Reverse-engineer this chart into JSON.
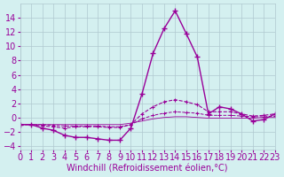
{
  "x": [
    0,
    1,
    2,
    3,
    4,
    5,
    6,
    7,
    8,
    9,
    10,
    11,
    12,
    13,
    14,
    15,
    16,
    17,
    18,
    19,
    20,
    21,
    22,
    23
  ],
  "line1": [
    -1,
    -1,
    -1.5,
    -1.8,
    -2.5,
    -2.8,
    -2.8,
    -3.0,
    -3.2,
    -3.2,
    -1.5,
    3.3,
    9.0,
    12.5,
    15.0,
    11.8,
    8.5,
    0.5,
    1.5,
    1.2,
    0.5,
    -0.5,
    -0.3,
    0.5
  ],
  "line2": [
    -1,
    -1,
    -1.2,
    -1.3,
    -1.5,
    -1.3,
    -1.3,
    -1.3,
    -1.4,
    -1.4,
    -1.0,
    0.5,
    1.5,
    2.2,
    2.5,
    2.2,
    1.8,
    0.8,
    0.8,
    0.8,
    0.5,
    0.2,
    0.3,
    0.5
  ],
  "line3": [
    -1,
    -1,
    -1.0,
    -1.1,
    -1.2,
    -1.2,
    -1.2,
    -1.2,
    -1.3,
    -1.3,
    -1.0,
    -0.2,
    0.3,
    0.6,
    0.8,
    0.7,
    0.6,
    0.3,
    0.3,
    0.3,
    0.2,
    0.1,
    0.1,
    0.2
  ],
  "line4": [
    -1,
    -1,
    -1.0,
    -1.0,
    -1.0,
    -1.0,
    -1.0,
    -1.0,
    -1.0,
    -1.0,
    -0.8,
    -0.5,
    -0.2,
    0.0,
    0.1,
    0.1,
    0.0,
    -0.1,
    -0.1,
    -0.1,
    -0.1,
    -0.1,
    0.0,
    0.0
  ],
  "bg_color": "#d4f0f0",
  "grid_color": "#b0c8d0",
  "line_color": "#990099",
  "xlabel": "Windchill (Refroidissement éolien,°C)",
  "xlim": [
    0,
    23
  ],
  "ylim": [
    -4.5,
    16
  ],
  "yticks": [
    -4,
    -2,
    0,
    2,
    4,
    6,
    8,
    10,
    12,
    14
  ],
  "xticks": [
    0,
    1,
    2,
    3,
    4,
    5,
    6,
    7,
    8,
    9,
    10,
    11,
    12,
    13,
    14,
    15,
    16,
    17,
    18,
    19,
    20,
    21,
    22,
    23
  ],
  "fontsize": 7
}
